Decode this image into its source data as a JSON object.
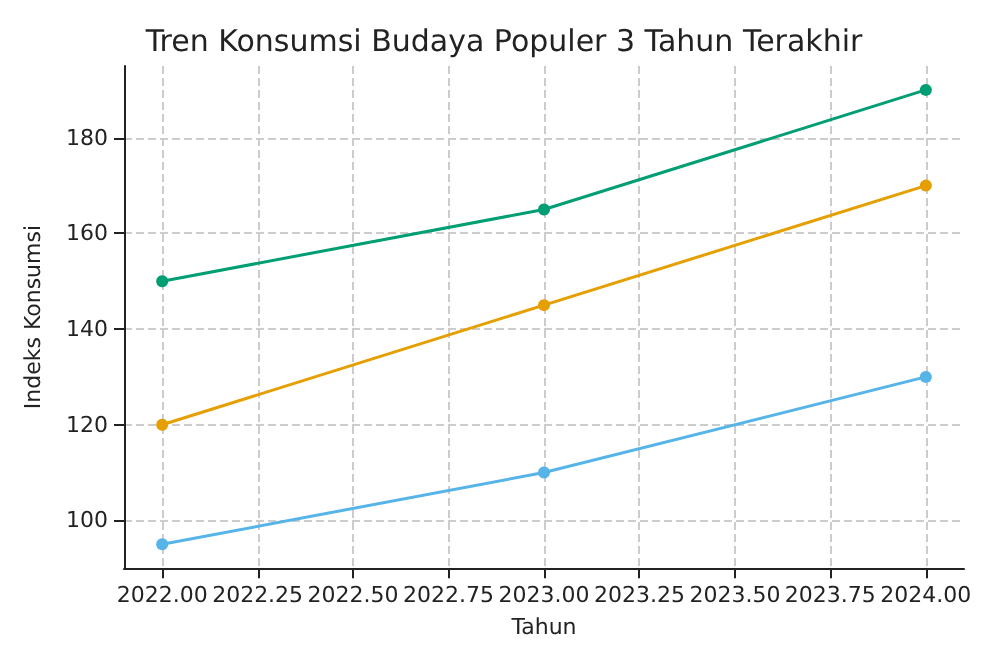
{
  "chart_data": {
    "type": "line",
    "title": "Tren Konsumsi Budaya Populer 3 Tahun Terakhir",
    "xlabel": "Tahun",
    "ylabel": "Indeks Konsumsi",
    "x": [
      2022,
      2023,
      2024
    ],
    "series": [
      {
        "color": "#009e73",
        "values": [
          150,
          165,
          190
        ]
      },
      {
        "color": "#e69f00",
        "values": [
          120,
          145,
          170
        ]
      },
      {
        "color": "#56b4e9",
        "values": [
          95,
          110,
          130
        ]
      }
    ],
    "xlim": [
      2021.9,
      2024.1
    ],
    "xticks": [
      {
        "value": 2022,
        "label": "2022.00"
      },
      {
        "value": 2022.25,
        "label": "2022.25"
      },
      {
        "value": 2022.5,
        "label": "2022.50"
      },
      {
        "value": 2022.75,
        "label": "2022.75"
      },
      {
        "value": 2023,
        "label": "2023.00"
      },
      {
        "value": 2023.25,
        "label": "2023.25"
      },
      {
        "value": 2023.5,
        "label": "2023.50"
      },
      {
        "value": 2023.75,
        "label": "2023.75"
      },
      {
        "value": 2024,
        "label": "2024.00"
      }
    ],
    "ylim": [
      90,
      195
    ],
    "yticks": [
      100,
      120,
      140,
      160,
      180
    ],
    "grid": true,
    "marker": "circle",
    "line_style": "solid"
  }
}
